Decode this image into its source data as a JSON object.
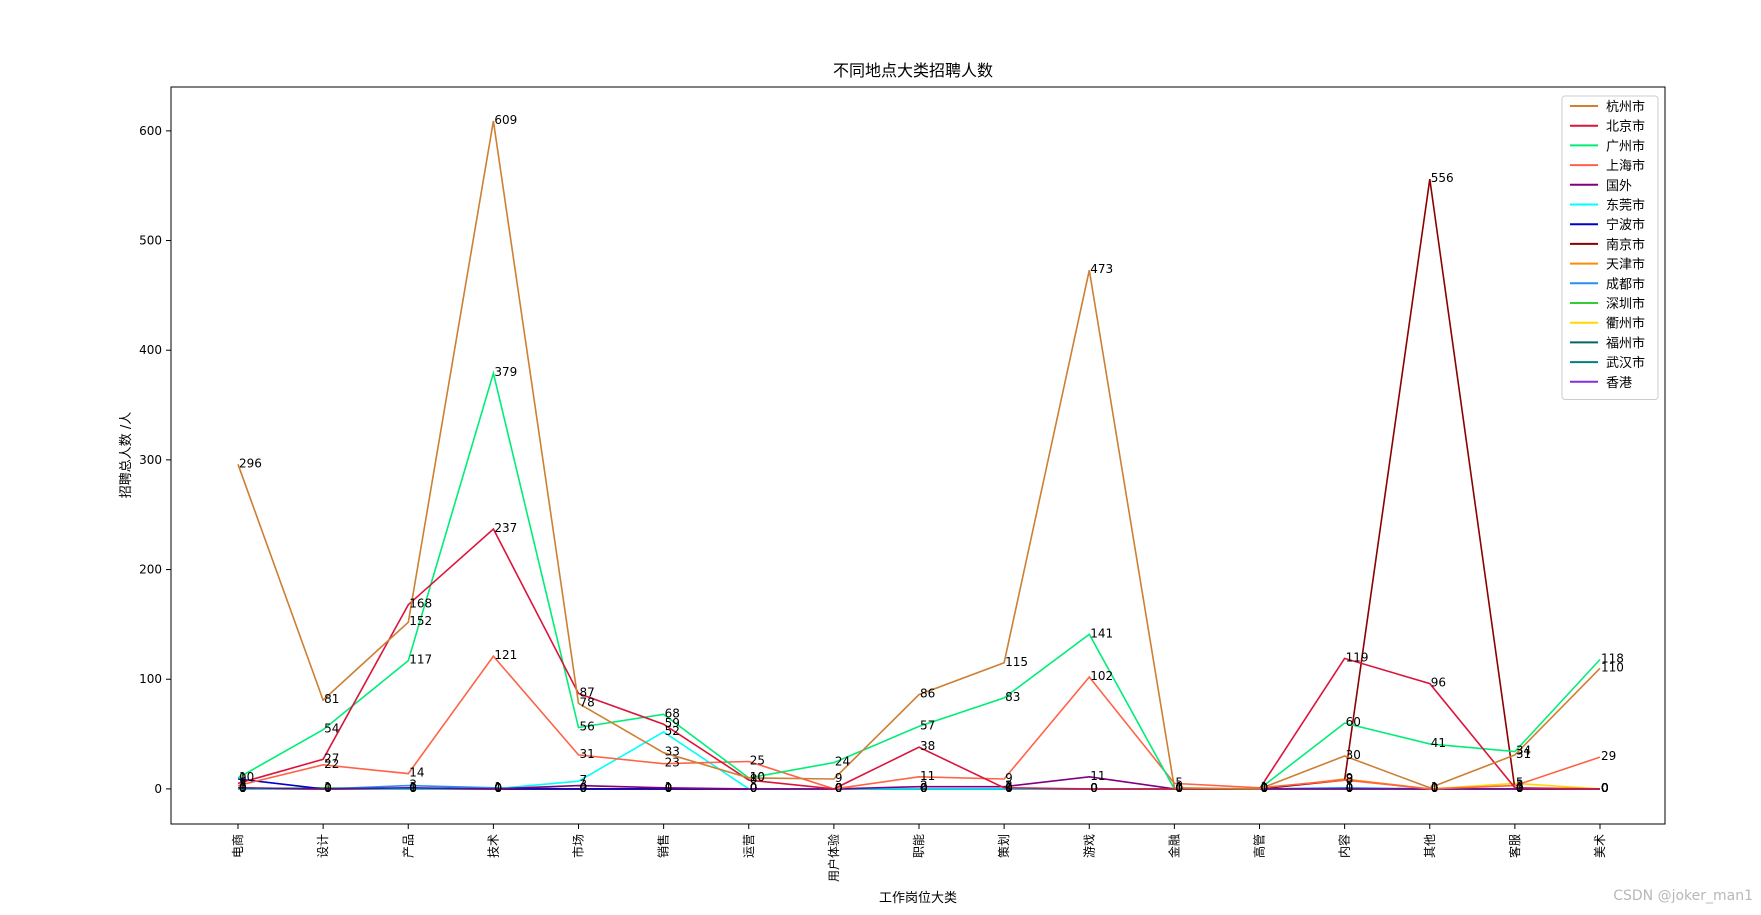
{
  "chart_data": {
    "type": "line",
    "title": "不同地点大类招聘人数",
    "xlabel": "工作岗位大类",
    "ylabel": "招聘总人数 /人",
    "categories": [
      "电商",
      "设计",
      "产品",
      "技术",
      "市场",
      "销售",
      "运营",
      "用户体验",
      "职能",
      "策划",
      "游戏",
      "金融",
      "高管",
      "内容",
      "其他",
      "客服",
      "美术"
    ],
    "ylim": [
      -32,
      640
    ],
    "yticks": [
      0,
      100,
      200,
      300,
      400,
      500,
      600
    ],
    "grid": false,
    "legend_position": "top-right",
    "series": [
      {
        "name": "杭州市",
        "color": "#cd7f32",
        "values": [
          296,
          81,
          152,
          609,
          78,
          33,
          10,
          9,
          86,
          115,
          473,
          1,
          0,
          30,
          1,
          31,
          110
        ]
      },
      {
        "name": "北京市",
        "color": "#dc143c",
        "values": [
          5,
          27,
          168,
          237,
          87,
          59,
          8,
          0,
          38,
          1,
          0,
          0,
          0,
          119,
          96,
          1,
          0
        ]
      },
      {
        "name": "广州市",
        "color": "#00ee76",
        "values": [
          10,
          54,
          117,
          379,
          56,
          68,
          10,
          24,
          57,
          83,
          141,
          0,
          0,
          60,
          41,
          34,
          118
        ]
      },
      {
        "name": "上海市",
        "color": "#ff6347",
        "values": [
          3,
          22,
          14,
          121,
          31,
          23,
          25,
          0,
          11,
          9,
          102,
          5,
          1,
          8,
          0,
          3,
          29
        ]
      },
      {
        "name": "国外",
        "color": "#800080",
        "values": [
          1,
          0,
          1,
          0,
          3,
          1,
          0,
          0,
          2,
          2,
          11,
          0,
          0,
          0,
          0,
          0,
          0
        ]
      },
      {
        "name": "东莞市",
        "color": "#00ffff",
        "values": [
          0,
          0,
          0,
          0,
          7,
          52,
          0,
          0,
          0,
          0,
          0,
          0,
          0,
          0,
          0,
          0,
          0
        ]
      },
      {
        "name": "宁波市",
        "color": "#0000cd",
        "values": [
          9,
          0,
          0,
          0,
          0,
          0,
          0,
          0,
          0,
          0,
          0,
          0,
          0,
          0,
          0,
          0,
          0
        ]
      },
      {
        "name": "南京市",
        "color": "#8b0000",
        "values": [
          0,
          0,
          0,
          0,
          0,
          0,
          0,
          0,
          0,
          0,
          0,
          0,
          0,
          8,
          556,
          0,
          0
        ]
      },
      {
        "name": "天津市",
        "color": "#ff8c00",
        "values": [
          0,
          0,
          0,
          0,
          0,
          0,
          0,
          0,
          0,
          0,
          0,
          0,
          0,
          9,
          0,
          0,
          0
        ]
      },
      {
        "name": "成都市",
        "color": "#1e90ff",
        "values": [
          0,
          0,
          3,
          1,
          0,
          0,
          0,
          0,
          0,
          0,
          0,
          0,
          0,
          1,
          0,
          0,
          0
        ]
      },
      {
        "name": "深圳市",
        "color": "#32cd32",
        "values": [
          0,
          1,
          0,
          0,
          0,
          0,
          0,
          0,
          0,
          0,
          0,
          0,
          0,
          0,
          0,
          0,
          0
        ]
      },
      {
        "name": "衢州市",
        "color": "#ffd700",
        "values": [
          0,
          0,
          0,
          0,
          0,
          0,
          0,
          0,
          0,
          0,
          0,
          0,
          0,
          0,
          0,
          5,
          0
        ]
      },
      {
        "name": "福州市",
        "color": "#006666",
        "values": [
          0,
          0,
          0,
          0,
          0,
          0,
          0,
          0,
          0,
          0,
          0,
          0,
          0,
          0,
          0,
          0,
          0
        ]
      },
      {
        "name": "武汉市",
        "color": "#008080",
        "values": [
          0,
          0,
          0,
          0,
          0,
          0,
          0,
          0,
          0,
          0,
          0,
          0,
          0,
          0,
          0,
          0,
          0
        ]
      },
      {
        "name": "香港",
        "color": "#8a2be2",
        "values": [
          0,
          0,
          0,
          0,
          0,
          0,
          0,
          0,
          0,
          0,
          0,
          0,
          0,
          0,
          0,
          0,
          0
        ]
      }
    ]
  },
  "watermark": "CSDN @joker_man1"
}
